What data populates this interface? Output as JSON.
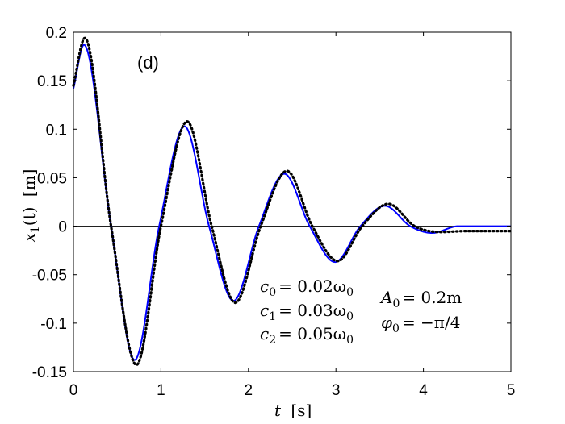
{
  "chart_data": {
    "type": "line",
    "panel_label": "(d)",
    "xlabel": {
      "var": "t",
      "unit": "[s]"
    },
    "ylabel": {
      "text": "x",
      "sub": "1",
      "arg": "(t)",
      "unit": "[m]"
    },
    "xlim": [
      0,
      5
    ],
    "ylim": [
      -0.15,
      0.2
    ],
    "xticks": [
      0,
      1,
      2,
      3,
      4,
      5
    ],
    "xtick_labels": [
      "0",
      "1",
      "2",
      "3",
      "4",
      "5"
    ],
    "yticks": [
      -0.15,
      -0.1,
      -0.05,
      0,
      0.05,
      0.1,
      0.15,
      0.2
    ],
    "ytick_labels": [
      "-0.15",
      "-0.1",
      "-0.05",
      "0",
      "0.05",
      "0.1",
      "0.15",
      "0.2"
    ],
    "zero_line": true,
    "grid": false,
    "annotations": {
      "params_left": [
        {
          "sym": "c",
          "sub": "0",
          "rhs": "= 0.02ω",
          "rhs_sub": "0"
        },
        {
          "sym": "c",
          "sub": "1",
          "rhs": "= 0.03ω",
          "rhs_sub": "0"
        },
        {
          "sym": "c",
          "sub": "2",
          "rhs": "= 0.05ω",
          "rhs_sub": "0"
        }
      ],
      "params_right": [
        {
          "sym": "A",
          "sub": "0",
          "rhs": "= 0.2m",
          "rhs_sub": ""
        },
        {
          "sym": "φ",
          "sub": "0",
          "rhs": "= −π/4",
          "rhs_sub": ""
        }
      ]
    },
    "series": [
      {
        "style": "solid",
        "color": "#0000ff",
        "x": [
          0,
          0.12,
          0.43,
          0.7,
          0.98,
          1.27,
          1.55,
          1.83,
          2.12,
          2.41,
          2.7,
          2.99,
          3.28,
          3.56,
          3.85,
          4.1,
          4.4,
          5.0
        ],
        "y": [
          0.142,
          0.187,
          0.0,
          -0.138,
          0.0,
          0.103,
          0.0,
          -0.077,
          0.0,
          0.054,
          0.0,
          -0.037,
          0.0,
          0.021,
          0.0,
          -0.007,
          0.0,
          0.0
        ]
      },
      {
        "style": "dotted",
        "color": "#000000",
        "x": [
          0,
          0.13,
          0.43,
          0.72,
          1.0,
          1.3,
          1.58,
          1.85,
          2.14,
          2.44,
          2.73,
          3.02,
          3.3,
          3.6,
          3.9,
          4.2,
          4.5,
          5.0
        ],
        "y": [
          0.145,
          0.194,
          0.0,
          -0.143,
          0.0,
          0.108,
          0.0,
          -0.079,
          0.0,
          0.057,
          0.0,
          -0.036,
          0.0,
          0.023,
          0.0,
          -0.006,
          -0.005,
          -0.005
        ]
      }
    ]
  }
}
